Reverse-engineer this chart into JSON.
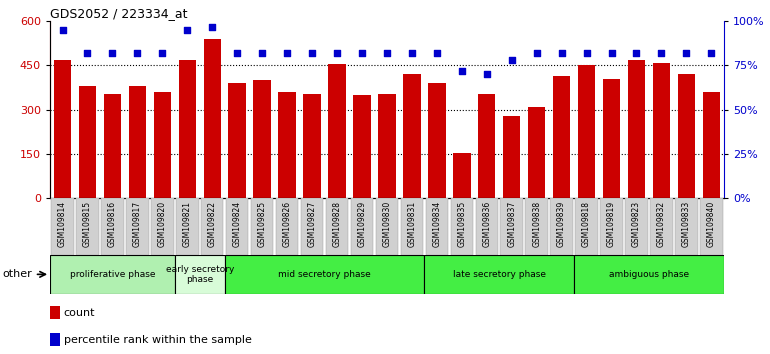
{
  "title": "GDS2052 / 223334_at",
  "samples": [
    "GSM109814",
    "GSM109815",
    "GSM109816",
    "GSM109817",
    "GSM109820",
    "GSM109821",
    "GSM109822",
    "GSM109824",
    "GSM109825",
    "GSM109826",
    "GSM109827",
    "GSM109828",
    "GSM109829",
    "GSM109830",
    "GSM109831",
    "GSM109834",
    "GSM109835",
    "GSM109836",
    "GSM109837",
    "GSM109838",
    "GSM109839",
    "GSM109818",
    "GSM109819",
    "GSM109823",
    "GSM109832",
    "GSM109833",
    "GSM109840"
  ],
  "counts": [
    470,
    380,
    355,
    380,
    360,
    470,
    540,
    390,
    400,
    360,
    355,
    455,
    350,
    355,
    420,
    390,
    155,
    355,
    280,
    310,
    415,
    450,
    405,
    470,
    460,
    420,
    360
  ],
  "percentile_ranks": [
    95,
    82,
    82,
    82,
    82,
    95,
    97,
    82,
    82,
    82,
    82,
    82,
    82,
    82,
    82,
    82,
    72,
    70,
    78,
    82,
    82,
    82,
    82,
    82,
    82,
    82,
    82
  ],
  "bar_color": "#cc0000",
  "dot_color": "#0000cc",
  "ylim_left": [
    0,
    600
  ],
  "yticks_left": [
    0,
    150,
    300,
    450,
    600
  ],
  "ylim_right": [
    0,
    100
  ],
  "yticks_right": [
    0,
    25,
    50,
    75,
    100
  ],
  "phases": [
    {
      "label": "proliferative phase",
      "start": 0,
      "end": 5,
      "color": "#b0f0b0"
    },
    {
      "label": "early secretory\nphase",
      "start": 5,
      "end": 7,
      "color": "#d8fcd8"
    },
    {
      "label": "mid secretory phase",
      "start": 7,
      "end": 15,
      "color": "#44ee44"
    },
    {
      "label": "late secretory phase",
      "start": 15,
      "end": 21,
      "color": "#44ee44"
    },
    {
      "label": "ambiguous phase",
      "start": 21,
      "end": 27,
      "color": "#44ee44"
    }
  ],
  "other_label": "other",
  "legend_count_label": "count",
  "legend_pct_label": "percentile rank within the sample",
  "tick_label_bg": "#d0d0d0"
}
